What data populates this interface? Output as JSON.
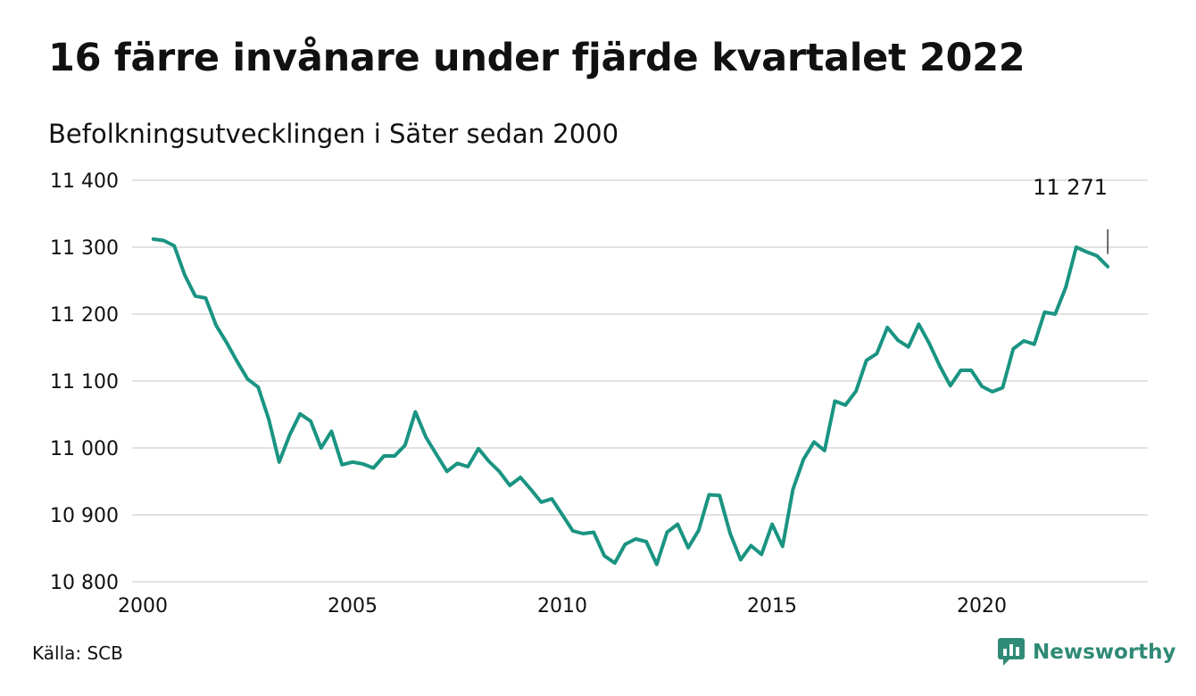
{
  "title": "16 färre invånare under fjärde kvartalet 2022",
  "subtitle": "Befolkningsutvecklingen i Säter sedan 2000",
  "source": "Källa: SCB",
  "brand": {
    "name": "Newsworthy",
    "icon": "newsworthy-logo-icon",
    "color": "#2f8a76"
  },
  "colors": {
    "line": "#1a9482",
    "grid": "#e2e2e2"
  },
  "chart_data": {
    "type": "line",
    "title": "16 färre invånare under fjärde kvartalet 2022",
    "subtitle": "Befolkningsutvecklingen i Säter sedan 2000",
    "xlabel": "",
    "ylabel": "",
    "x_ticks": [
      {
        "label": "2000",
        "value": 2000
      },
      {
        "label": "2005",
        "value": 2005
      },
      {
        "label": "2010",
        "value": 2010
      },
      {
        "label": "2015",
        "value": 2015
      },
      {
        "label": "2020",
        "value": 2020
      }
    ],
    "y_ticks": [
      {
        "label": "11 400",
        "value": 11400
      },
      {
        "label": "11 300",
        "value": 11300
      },
      {
        "label": "11 200",
        "value": 11200
      },
      {
        "label": "11 100",
        "value": 11100
      },
      {
        "label": "11 000",
        "value": 11000
      },
      {
        "label": "10 900",
        "value": 10900
      },
      {
        "label": "10 800",
        "value": 10800
      }
    ],
    "xlim": [
      2000,
      2023.5
    ],
    "ylim": [
      10800,
      11400
    ],
    "grid": true,
    "end_label": "11 271",
    "series": [
      {
        "name": "",
        "color": "#1a9482",
        "points": [
          [
            "2000-03-31",
            11312
          ],
          [
            "2000-06-30",
            11310
          ],
          [
            "2000-09-30",
            11302
          ],
          [
            "2000-12-31",
            11258
          ],
          [
            "2001-03-31",
            11227
          ],
          [
            "2001-06-30",
            11224
          ],
          [
            "2001-09-30",
            11183
          ],
          [
            "2001-12-31",
            11157
          ],
          [
            "2002-03-31",
            11129
          ],
          [
            "2002-06-30",
            11103
          ],
          [
            "2002-09-30",
            11091
          ],
          [
            "2002-12-31",
            11043
          ],
          [
            "2003-03-31",
            10979
          ],
          [
            "2003-06-30",
            11019
          ],
          [
            "2003-09-30",
            11051
          ],
          [
            "2003-12-31",
            11040
          ],
          [
            "2004-03-31",
            11000
          ],
          [
            "2004-06-30",
            11025
          ],
          [
            "2004-09-30",
            10975
          ],
          [
            "2004-12-31",
            10979
          ],
          [
            "2005-03-31",
            10976
          ],
          [
            "2005-06-30",
            10970
          ],
          [
            "2005-09-30",
            10988
          ],
          [
            "2005-12-31",
            10988
          ],
          [
            "2006-03-31",
            11004
          ],
          [
            "2006-06-30",
            11054
          ],
          [
            "2006-09-30",
            11016
          ],
          [
            "2006-12-31",
            10990
          ],
          [
            "2007-03-31",
            10965
          ],
          [
            "2007-06-30",
            10977
          ],
          [
            "2007-09-30",
            10972
          ],
          [
            "2007-12-31",
            10999
          ],
          [
            "2008-03-31",
            10980
          ],
          [
            "2008-06-30",
            10965
          ],
          [
            "2008-09-30",
            10944
          ],
          [
            "2008-12-31",
            10956
          ],
          [
            "2009-03-31",
            10938
          ],
          [
            "2009-06-30",
            10919
          ],
          [
            "2009-09-30",
            10924
          ],
          [
            "2009-12-31",
            10900
          ],
          [
            "2010-03-31",
            10876
          ],
          [
            "2010-06-30",
            10872
          ],
          [
            "2010-09-30",
            10874
          ],
          [
            "2010-12-31",
            10839
          ],
          [
            "2011-03-31",
            10828
          ],
          [
            "2011-06-30",
            10856
          ],
          [
            "2011-09-30",
            10864
          ],
          [
            "2011-12-31",
            10860
          ],
          [
            "2012-03-31",
            10826
          ],
          [
            "2012-06-30",
            10874
          ],
          [
            "2012-09-30",
            10886
          ],
          [
            "2012-12-31",
            10851
          ],
          [
            "2013-03-31",
            10877
          ],
          [
            "2013-06-30",
            10930
          ],
          [
            "2013-09-30",
            10929
          ],
          [
            "2013-12-31",
            10872
          ],
          [
            "2014-03-31",
            10833
          ],
          [
            "2014-06-30",
            10854
          ],
          [
            "2014-09-30",
            10841
          ],
          [
            "2014-12-31",
            10886
          ],
          [
            "2015-03-31",
            10853
          ],
          [
            "2015-06-30",
            10938
          ],
          [
            "2015-09-30",
            10983
          ],
          [
            "2015-12-31",
            11009
          ],
          [
            "2016-03-31",
            10996
          ],
          [
            "2016-06-30",
            11070
          ],
          [
            "2016-09-30",
            11064
          ],
          [
            "2016-12-31",
            11085
          ],
          [
            "2017-03-31",
            11131
          ],
          [
            "2017-06-30",
            11141
          ],
          [
            "2017-09-30",
            11180
          ],
          [
            "2017-12-31",
            11161
          ],
          [
            "2018-03-31",
            11151
          ],
          [
            "2018-06-30",
            11185
          ],
          [
            "2018-09-30",
            11156
          ],
          [
            "2018-12-31",
            11122
          ],
          [
            "2019-03-31",
            11093
          ],
          [
            "2019-06-30",
            11116
          ],
          [
            "2019-09-30",
            11116
          ],
          [
            "2019-12-31",
            11092
          ],
          [
            "2020-03-31",
            11084
          ],
          [
            "2020-06-30",
            11090
          ],
          [
            "2020-09-30",
            11148
          ],
          [
            "2020-12-31",
            11160
          ],
          [
            "2021-03-31",
            11155
          ],
          [
            "2021-06-30",
            11203
          ],
          [
            "2021-09-30",
            11200
          ],
          [
            "2021-12-31",
            11240
          ],
          [
            "2022-03-31",
            11300
          ],
          [
            "2022-06-30",
            11293
          ],
          [
            "2022-09-30",
            11287
          ],
          [
            "2022-12-31",
            11271
          ]
        ]
      }
    ]
  }
}
